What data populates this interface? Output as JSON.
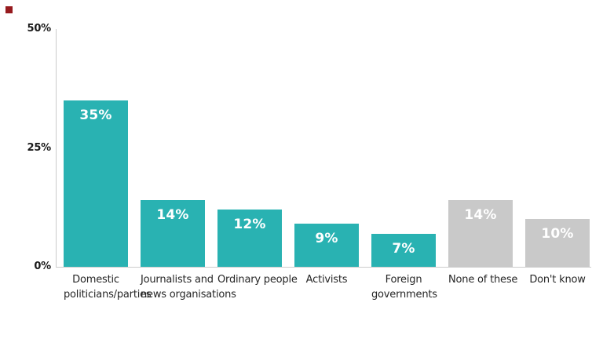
{
  "brand": {
    "mark_color": "#961a1e"
  },
  "chart_data": {
    "type": "bar",
    "title": "",
    "xlabel": "",
    "ylabel": "",
    "categories": [
      "Domestic politicians/parties",
      "Journalists and news organisations",
      "Ordinary people",
      "Activists",
      "Foreign governments",
      "None of these",
      "Don't know"
    ],
    "category_lines": [
      [
        "Domestic",
        "politicians/parties"
      ],
      [
        "Journalists and",
        "news organisations"
      ],
      [
        "Ordinary people"
      ],
      [
        "Activists"
      ],
      [
        "Foreign",
        "governments"
      ],
      [
        "None of these"
      ],
      [
        "Don't know"
      ]
    ],
    "values": [
      35,
      14,
      12,
      9,
      7,
      14,
      10
    ],
    "value_labels": [
      "35%",
      "14%",
      "12%",
      "9%",
      "7%",
      "14%",
      "10%"
    ],
    "bar_colors": [
      "#29b2b2",
      "#29b2b2",
      "#29b2b2",
      "#29b2b2",
      "#29b2b2",
      "#c9c9c9",
      "#c9c9c9"
    ],
    "ylim": [
      0,
      50
    ],
    "yticks": [
      {
        "label": "50%",
        "value": 50
      },
      {
        "label": "25%",
        "value": 25
      },
      {
        "label": "0%",
        "value": 0
      }
    ],
    "grid": false,
    "legend": "none",
    "colors": {
      "teal": "#29b2b2",
      "gray": "#c9c9c9",
      "axis_line": "#cccccc",
      "value_label_text": "#ffffff",
      "tick_label_text": "#1a1a1a",
      "category_label_text": "#262626"
    }
  }
}
